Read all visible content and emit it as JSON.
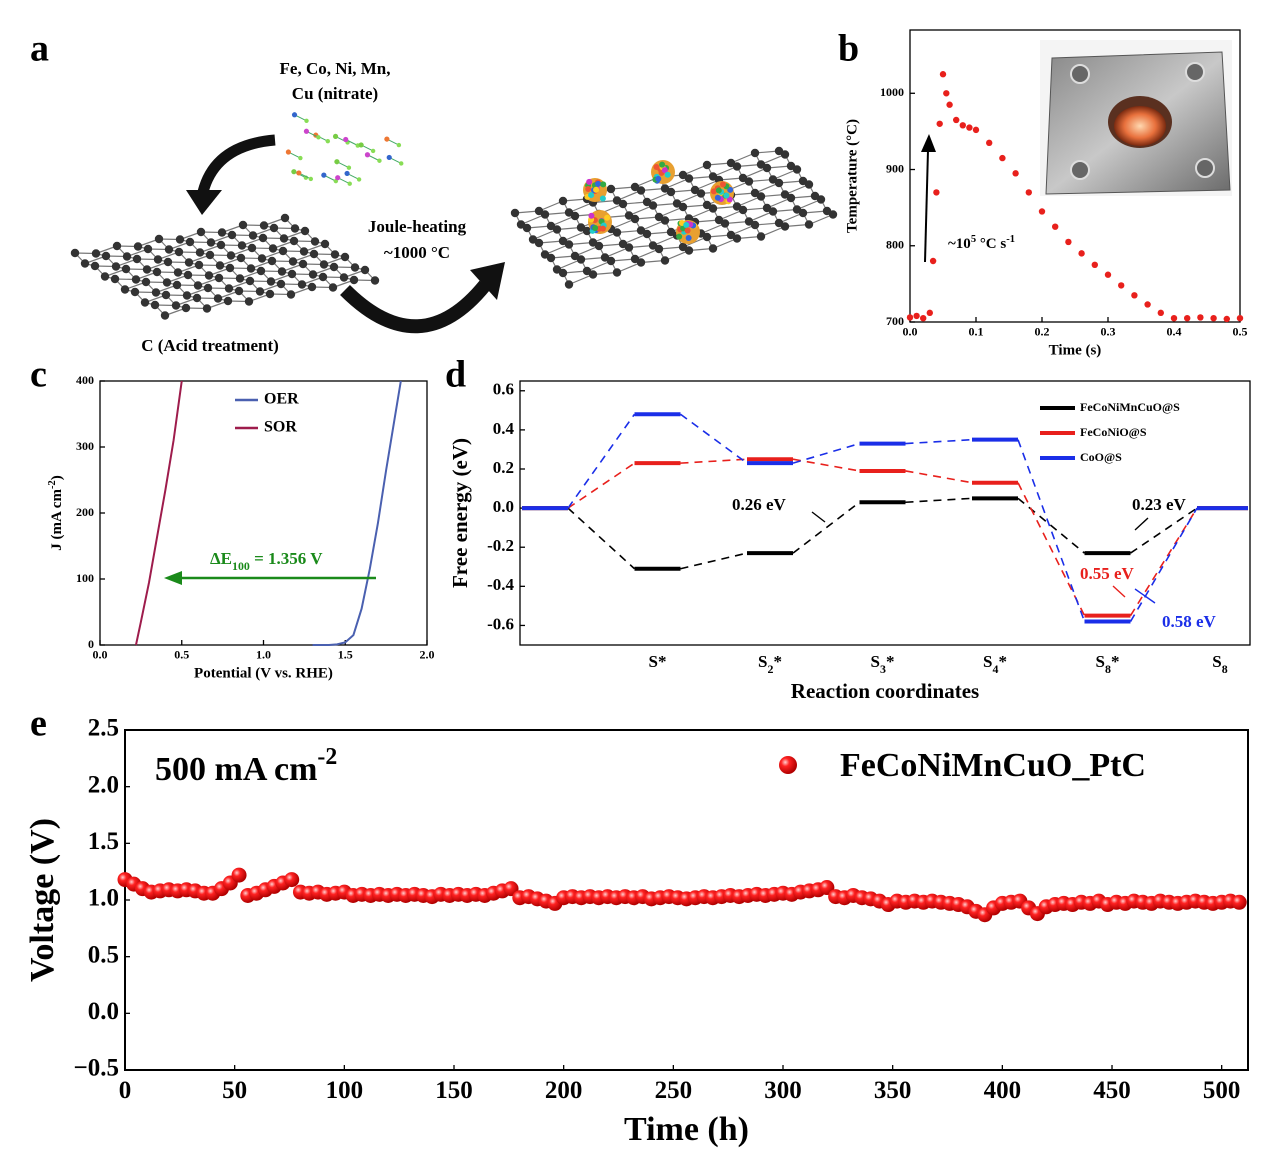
{
  "schematic": {
    "panel": "a",
    "precursor": [
      "Fe, Co, Ni, Mn,",
      "Cu (nitrate)"
    ],
    "support": "C (Acid treatment)",
    "process": [
      "Joule-heating",
      "~1000 °C"
    ]
  },
  "chart_data": [
    {
      "type": "scatter",
      "panel": "b",
      "color": "#e8201c",
      "x_label": "Time (s)",
      "y_label": "Temperature (°C)",
      "annotation": [
        {
          "text": "~10"
        },
        {
          "text": "5",
          "shift": "super"
        },
        {
          "text": " °C s"
        },
        {
          "text": "-1",
          "shift": "super"
        }
      ],
      "x": [
        0,
        0.01,
        0.02,
        0.03,
        0.035,
        0.04,
        0.045,
        0.05,
        0.055,
        0.06,
        0.07,
        0.08,
        0.09,
        0.1,
        0.12,
        0.14,
        0.16,
        0.18,
        0.2,
        0.22,
        0.24,
        0.26,
        0.28,
        0.3,
        0.32,
        0.34,
        0.36,
        0.38,
        0.4,
        0.42,
        0.44,
        0.46,
        0.48,
        0.5
      ],
      "values": [
        706,
        708,
        705,
        712,
        780,
        870,
        960,
        1025,
        1000,
        985,
        965,
        958,
        955,
        952,
        935,
        915,
        895,
        870,
        845,
        825,
        805,
        790,
        775,
        762,
        748,
        735,
        723,
        712,
        705,
        705,
        706,
        705,
        704,
        705
      ],
      "xlim": [
        0,
        0.5
      ],
      "xticks": [
        {
          "value": 0,
          "label": "0.0"
        },
        0.1,
        0.2,
        0.3,
        0.4,
        0.5
      ],
      "ylim": [
        700,
        1083
      ],
      "yticks": [
        700,
        800,
        900,
        1000
      ]
    },
    {
      "type": "line",
      "panel": "c",
      "x_label": "Potential (V vs. RHE)",
      "y_label": [
        {
          "text": "J (mA cm"
        },
        {
          "text": "-2",
          "shift": "super"
        },
        {
          "text": ")"
        }
      ],
      "annotation": [
        {
          "text": "ΔE"
        },
        {
          "text": "100",
          "shift": "sub"
        },
        {
          "text": " = 1.356 V"
        }
      ],
      "series": [
        {
          "name": "OER",
          "color": "#4a60b0",
          "x": [
            1.3,
            1.4,
            1.45,
            1.5,
            1.55,
            1.6,
            1.65,
            1.7,
            1.75,
            1.8,
            1.84
          ],
          "values": [
            0,
            0,
            1,
            4,
            15,
            55,
            115,
            185,
            265,
            340,
            400
          ]
        },
        {
          "name": "SOR",
          "color": "#9e1c4c",
          "x": [
            0.22,
            0.25,
            0.3,
            0.35,
            0.4,
            0.45,
            0.5
          ],
          "values": [
            0,
            35,
            95,
            165,
            235,
            310,
            400
          ]
        }
      ],
      "xlim": [
        0,
        2
      ],
      "xticks": [
        {
          "value": 0,
          "label": "0.0"
        },
        0.5,
        {
          "value": 1,
          "label": "1.0"
        },
        1.5,
        {
          "value": 2,
          "label": "2.0"
        }
      ],
      "ylim": [
        0,
        400
      ],
      "yticks": [
        0,
        100,
        200,
        300,
        400
      ]
    },
    {
      "type": "energy",
      "panel": "d",
      "x_label": "Reaction coordinates",
      "y_label": "Free energy (eV)",
      "categories": [
        null,
        [
          {
            "text": "S*"
          }
        ],
        [
          {
            "text": "S"
          },
          {
            "text": "2",
            "shift": "sub"
          },
          {
            "text": "*"
          }
        ],
        [
          {
            "text": "S"
          },
          {
            "text": "3",
            "shift": "sub"
          },
          {
            "text": "*"
          }
        ],
        [
          {
            "text": "S"
          },
          {
            "text": "4",
            "shift": "sub"
          },
          {
            "text": "*"
          }
        ],
        [
          {
            "text": "S"
          },
          {
            "text": "8",
            "shift": "sub"
          },
          {
            "text": "*"
          }
        ],
        [
          {
            "text": "S"
          },
          {
            "text": "8",
            "shift": "sub"
          }
        ]
      ],
      "series": [
        {
          "name": "FeCoNiMnCuO@S",
          "color": "#000000",
          "values": [
            0,
            -0.31,
            -0.23,
            0.03,
            0.05,
            -0.23,
            0
          ]
        },
        {
          "name": "FeCoNiO@S",
          "color": "#e8201c",
          "values": [
            0,
            0.23,
            0.25,
            0.19,
            0.13,
            -0.55,
            0
          ]
        },
        {
          "name": "CoO@S",
          "color": "#1a2ee8",
          "values": [
            0,
            0.48,
            0.23,
            0.33,
            0.35,
            -0.58,
            0
          ]
        }
      ],
      "annotations": [
        {
          "text": "0.26 eV",
          "color": "#000000"
        },
        {
          "text": "0.23 eV",
          "color": "#000000"
        },
        {
          "text": "0.55 eV",
          "color": "#e8201c"
        },
        {
          "text": "0.58 eV",
          "color": "#1a2ee8"
        }
      ],
      "ylim": [
        -0.7,
        0.65
      ],
      "yticks": [
        -0.6,
        -0.4,
        -0.2,
        {
          "value": 0,
          "label": "0.0"
        },
        0.2,
        0.4,
        0.6
      ]
    },
    {
      "type": "scatter",
      "panel": "e",
      "color": "#e8201c",
      "x_label": "Time (h)",
      "y_label": "Voltage (V)",
      "annotation": [
        {
          "text": "500 mA cm"
        },
        {
          "text": "-2",
          "shift": "super"
        }
      ],
      "legend_name": "FeCoNiMnCuO_PtC",
      "x": [
        0,
        4,
        8,
        12,
        16,
        20,
        24,
        28,
        32,
        36,
        40,
        44,
        48,
        52,
        56,
        60,
        64,
        68,
        72,
        76,
        80,
        84,
        88,
        92,
        96,
        100,
        104,
        108,
        112,
        116,
        120,
        124,
        128,
        132,
        136,
        140,
        144,
        148,
        152,
        156,
        160,
        164,
        168,
        172,
        176,
        180,
        184,
        188,
        192,
        196,
        200,
        204,
        208,
        212,
        216,
        220,
        224,
        228,
        232,
        236,
        240,
        244,
        248,
        252,
        256,
        260,
        264,
        268,
        272,
        276,
        280,
        284,
        288,
        292,
        296,
        300,
        304,
        308,
        312,
        316,
        320,
        324,
        328,
        332,
        336,
        340,
        344,
        348,
        352,
        356,
        360,
        364,
        368,
        372,
        376,
        380,
        384,
        388,
        392,
        396,
        400,
        404,
        408,
        412,
        416,
        420,
        424,
        428,
        432,
        436,
        440,
        444,
        448,
        452,
        456,
        460,
        464,
        468,
        472,
        476,
        480,
        484,
        488,
        492,
        496,
        500,
        504,
        508
      ],
      "values": [
        1.18,
        1.14,
        1.1,
        1.07,
        1.08,
        1.09,
        1.08,
        1.09,
        1.08,
        1.06,
        1.06,
        1.1,
        1.15,
        1.22,
        1.04,
        1.06,
        1.09,
        1.12,
        1.15,
        1.18,
        1.07,
        1.06,
        1.07,
        1.05,
        1.06,
        1.07,
        1.04,
        1.05,
        1.04,
        1.05,
        1.04,
        1.05,
        1.04,
        1.05,
        1.04,
        1.03,
        1.05,
        1.04,
        1.05,
        1.04,
        1.05,
        1.04,
        1.06,
        1.08,
        1.1,
        1.02,
        1.03,
        1.01,
        0.99,
        0.97,
        1.02,
        1.03,
        1.02,
        1.03,
        1.02,
        1.03,
        1.02,
        1.03,
        1.02,
        1.03,
        1.01,
        1.02,
        1.03,
        1.02,
        1.01,
        1.02,
        1.03,
        1.02,
        1.03,
        1.04,
        1.03,
        1.04,
        1.05,
        1.04,
        1.05,
        1.06,
        1.05,
        1.07,
        1.08,
        1.09,
        1.11,
        1.03,
        1.02,
        1.04,
        1.02,
        1.01,
        0.99,
        0.96,
        0.99,
        0.98,
        0.99,
        0.98,
        0.99,
        0.98,
        0.97,
        0.96,
        0.94,
        0.9,
        0.87,
        0.93,
        0.97,
        0.98,
        0.99,
        0.93,
        0.88,
        0.94,
        0.96,
        0.97,
        0.96,
        0.98,
        0.97,
        0.99,
        0.96,
        0.98,
        0.97,
        0.99,
        0.98,
        0.97,
        0.99,
        0.98,
        0.97,
        0.98,
        0.99,
        0.98,
        0.97,
        0.98,
        0.99,
        0.98
      ],
      "xlim": [
        0,
        512
      ],
      "xticks": [
        0,
        50,
        100,
        150,
        200,
        250,
        300,
        350,
        400,
        450,
        500
      ],
      "ylim": [
        -0.5,
        2.5
      ],
      "yticks": [
        {
          "value": -0.5,
          "label": "−0.5"
        },
        {
          "value": 0,
          "label": "0.0"
        },
        0.5,
        {
          "value": 1,
          "label": "1.0"
        },
        1.5,
        {
          "value": 2,
          "label": "2.0"
        },
        2.5
      ]
    }
  ]
}
